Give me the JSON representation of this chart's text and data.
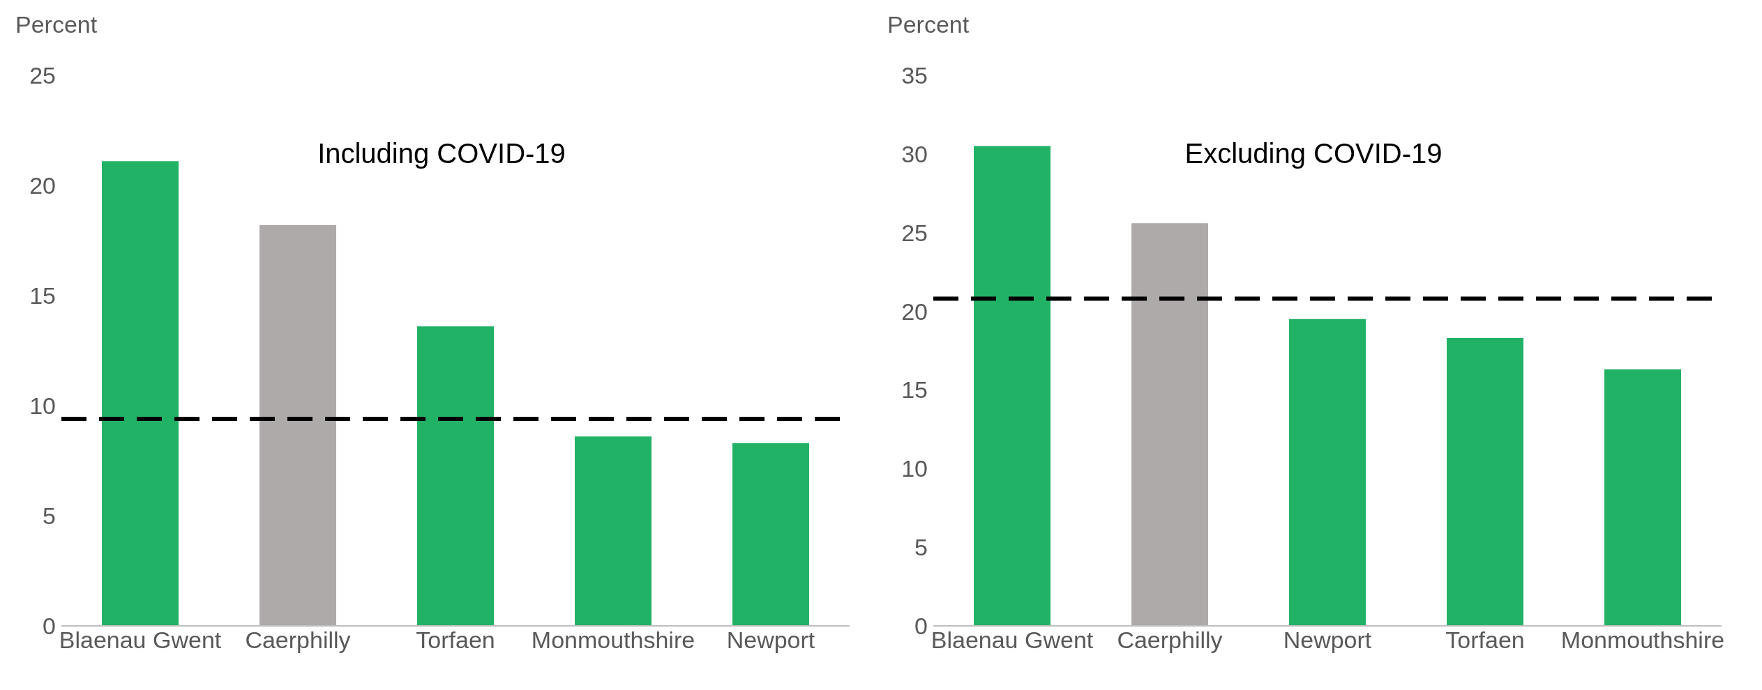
{
  "chart_data": [
    {
      "type": "bar",
      "title": "Including COVID-19",
      "ylabel": "Percent",
      "categories": [
        "Blaenau Gwent",
        "Caerphilly",
        "Torfaen",
        "Monmouthshire",
        "Newport"
      ],
      "values": [
        21.1,
        18.2,
        13.6,
        8.6,
        8.3
      ],
      "colors": [
        "#22b266",
        "#aeaaaa",
        "#22b266",
        "#22b266",
        "#22b266"
      ],
      "ylim": [
        0,
        25
      ],
      "yticks": [
        0,
        5,
        10,
        15,
        20,
        25
      ],
      "grid": false,
      "ref_lines": [
        {
          "axis": "y",
          "value": 9.4,
          "color": "#000000",
          "line_style": "dashed"
        }
      ]
    },
    {
      "type": "bar",
      "title": "Excluding COVID-19",
      "ylabel": "Percent",
      "categories": [
        "Blaenau Gwent",
        "Caerphilly",
        "Newport",
        "Torfaen",
        "Monmouthshire"
      ],
      "values": [
        30.5,
        25.6,
        19.5,
        18.3,
        16.3
      ],
      "colors": [
        "#22b266",
        "#aeaaaa",
        "#22b266",
        "#22b266",
        "#22b266"
      ],
      "ylim": [
        0,
        35
      ],
      "yticks": [
        0,
        5,
        10,
        15,
        20,
        25,
        30,
        35
      ],
      "grid": false,
      "ref_lines": [
        {
          "axis": "y",
          "value": 20.8,
          "color": "#000000",
          "line_style": "dashed"
        }
      ]
    }
  ]
}
